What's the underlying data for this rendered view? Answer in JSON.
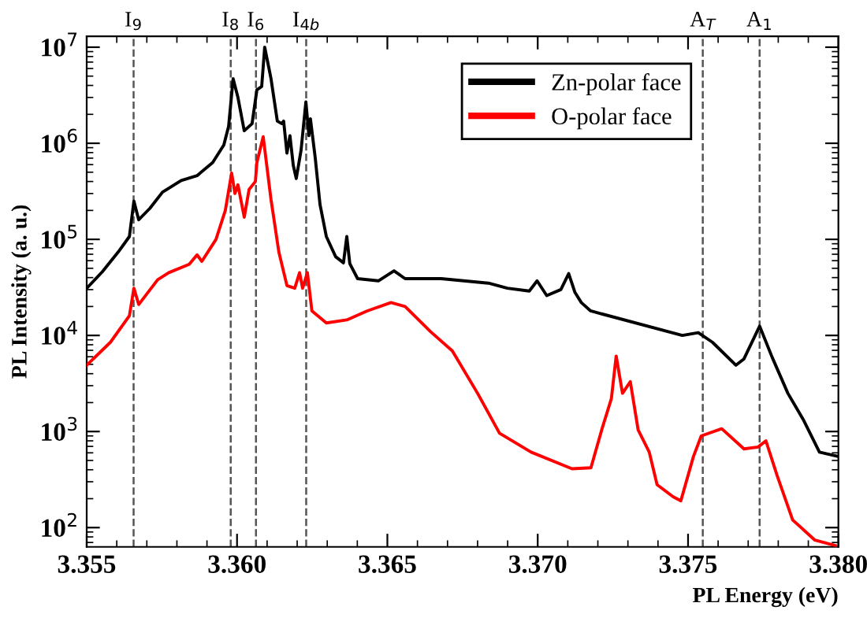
{
  "chart_data": {
    "type": "line",
    "xlabel": "PL Energy (eV)",
    "ylabel": "PL Intensity (a. u.)",
    "log": "y",
    "grid": false,
    "legend": "top right",
    "line_style": "solid",
    "marker": "none",
    "xlim": [
      3.355,
      3.38
    ],
    "xticks": [
      {
        "value": 3.355,
        "label": "3.355"
      },
      {
        "value": 3.36,
        "label": "3.360"
      },
      {
        "value": 3.365,
        "label": "3.365"
      },
      {
        "value": 3.37,
        "label": "3.370"
      },
      {
        "value": 3.375,
        "label": "3.375"
      },
      {
        "value": 3.38,
        "label": "3.380"
      }
    ],
    "ylim": [
      63,
      13000000
    ],
    "yticks": [
      {
        "value": 100,
        "label": "10$^{2}$"
      },
      {
        "value": 1000,
        "label": "10$^{3}$"
      },
      {
        "value": 10000,
        "label": "10$^{4}$"
      },
      {
        "value": 100000,
        "label": "10$^{5}$"
      },
      {
        "value": 1000000,
        "label": "10$^{6}$"
      },
      {
        "value": 10000000,
        "label": "10$^{7}$"
      }
    ],
    "series": [
      {
        "name": "Zn-polar face",
        "color": "#000000",
        "x": [
          3.355,
          3.35552,
          3.35605,
          3.35642,
          3.35657,
          3.35673,
          3.3571,
          3.35752,
          3.35814,
          3.35867,
          3.35919,
          3.35956,
          3.35972,
          3.35987,
          3.36003,
          3.36024,
          3.3605,
          3.36066,
          3.36082,
          3.36092,
          3.36113,
          3.36134,
          3.36149,
          3.36155,
          3.36166,
          3.36176,
          3.36187,
          3.36197,
          3.36213,
          3.36229,
          3.36239,
          3.36244,
          3.3626,
          3.36276,
          3.36297,
          3.36328,
          3.36354,
          3.36365,
          3.36375,
          3.36401,
          3.3647,
          3.36522,
          3.36559,
          3.36679,
          3.36836,
          3.36899,
          3.36972,
          3.36998,
          3.3703,
          3.37077,
          3.37103,
          3.37124,
          3.37145,
          3.37176,
          3.37481,
          3.37534,
          3.37581,
          3.37659,
          3.37686,
          3.37738,
          3.3778,
          3.37832,
          3.37885,
          3.37937,
          3.38
        ],
        "values": [
          31000,
          46000,
          74000,
          107000,
          250000,
          160000,
          210000,
          310000,
          410000,
          460000,
          630000,
          960000,
          1500000,
          4700000,
          3000000,
          1350000,
          1600000,
          3600000,
          3900000,
          10000000,
          4700000,
          1700000,
          1600000,
          1700000,
          790000,
          1200000,
          590000,
          430000,
          850000,
          2700000,
          1200000,
          1800000,
          710000,
          230000,
          107000,
          66000,
          57000,
          107000,
          56000,
          39000,
          37000,
          47000,
          39000,
          39000,
          35000,
          31000,
          29000,
          37000,
          26000,
          30000,
          44000,
          28000,
          22000,
          18000,
          10000,
          10700,
          8500,
          4900,
          5700,
          12500,
          5900,
          2500,
          1300,
          610,
          550
        ]
      },
      {
        "name": "O-polar face",
        "color": "#ff0000",
        "x": [
          3.355,
          3.35579,
          3.35642,
          3.35657,
          3.35673,
          3.35736,
          3.35773,
          3.35841,
          3.35867,
          3.35883,
          3.3593,
          3.35961,
          3.35982,
          3.35993,
          3.36003,
          3.36024,
          3.3604,
          3.36061,
          3.36066,
          3.36087,
          3.36113,
          3.36139,
          3.36166,
          3.36192,
          3.36208,
          3.36218,
          3.36234,
          3.36249,
          3.36297,
          3.36365,
          3.36433,
          3.36512,
          3.36559,
          3.36643,
          3.36716,
          3.368,
          3.36873,
          3.36978,
          3.37114,
          3.37177,
          3.37214,
          3.37245,
          3.37261,
          3.37282,
          3.37308,
          3.37334,
          3.37371,
          3.37397,
          3.3745,
          3.37476,
          3.37518,
          3.37544,
          3.37612,
          3.37686,
          3.37733,
          3.37759,
          3.37796,
          3.37848,
          3.37922,
          3.3799
        ],
        "values": [
          4900,
          8500,
          16000,
          31000,
          21000,
          38000,
          45000,
          55000,
          69000,
          59000,
          100000,
          200000,
          490000,
          300000,
          370000,
          170000,
          330000,
          400000,
          630000,
          1170000,
          260000,
          74000,
          33000,
          31000,
          45000,
          31000,
          45000,
          18000,
          13500,
          14500,
          18000,
          22000,
          20000,
          11000,
          6900,
          2500,
          960,
          610,
          410,
          420,
          1070,
          2200,
          6100,
          2500,
          3300,
          1040,
          610,
          280,
          210,
          190,
          550,
          900,
          1070,
          660,
          690,
          800,
          350,
          120,
          74,
          65
        ]
      }
    ],
    "ref_lines": [
      {
        "axis": "x",
        "value": 3.35656,
        "label": "I$_{9}$",
        "color": "#555555",
        "line_style": "dashed"
      },
      {
        "axis": "x",
        "value": 3.35979,
        "label": "I$_{8}$",
        "color": "#555555",
        "line_style": "dashed"
      },
      {
        "axis": "x",
        "value": 3.36063,
        "label": "I$_{6}$",
        "color": "#555555",
        "line_style": "dashed"
      },
      {
        "axis": "x",
        "value": 3.3623,
        "label": "I$_{4b}$",
        "color": "#555555",
        "line_style": "dashed"
      },
      {
        "axis": "x",
        "value": 3.37549,
        "label": "A$_{T}$",
        "color": "#555555",
        "line_style": "dashed"
      },
      {
        "axis": "x",
        "value": 3.37738,
        "label": "A$_{1}$",
        "color": "#555555",
        "line_style": "dashed"
      }
    ]
  }
}
